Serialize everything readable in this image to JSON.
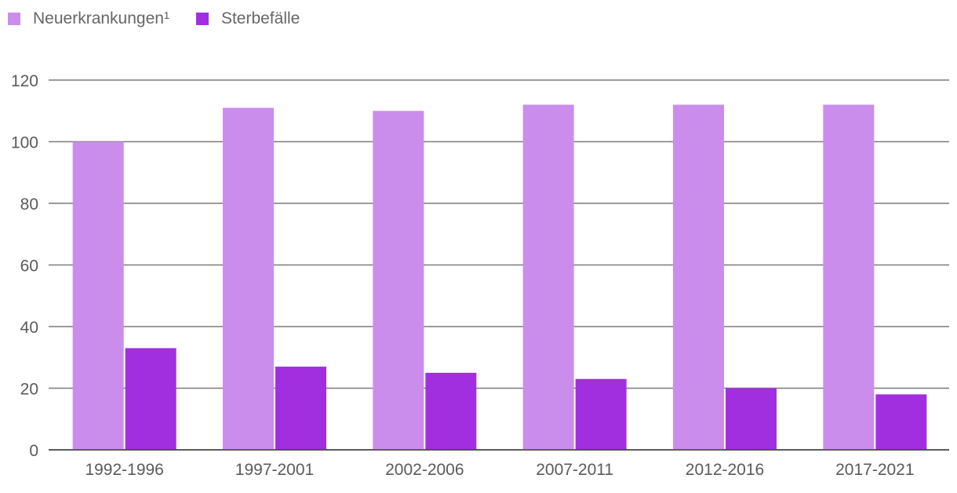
{
  "chart_data": {
    "type": "bar",
    "title": "",
    "xlabel": "",
    "ylabel": "",
    "categories": [
      "1992-1996",
      "1997-2001",
      "2002-2006",
      "2007-2011",
      "2012-2016",
      "2017-2021"
    ],
    "series": [
      {
        "name": "Neuerkrankungen¹",
        "color": "#cb8deb",
        "values": [
          100,
          111,
          110,
          112,
          112,
          112
        ]
      },
      {
        "name": "Sterbefälle",
        "color": "#a22fdf",
        "values": [
          33,
          27,
          25,
          23,
          20,
          18
        ]
      }
    ],
    "ylim": [
      0,
      120
    ],
    "yticks": [
      "0",
      "20",
      "40",
      "60",
      "80",
      "100",
      "120"
    ],
    "grid": true,
    "legend_position": "top-left"
  }
}
